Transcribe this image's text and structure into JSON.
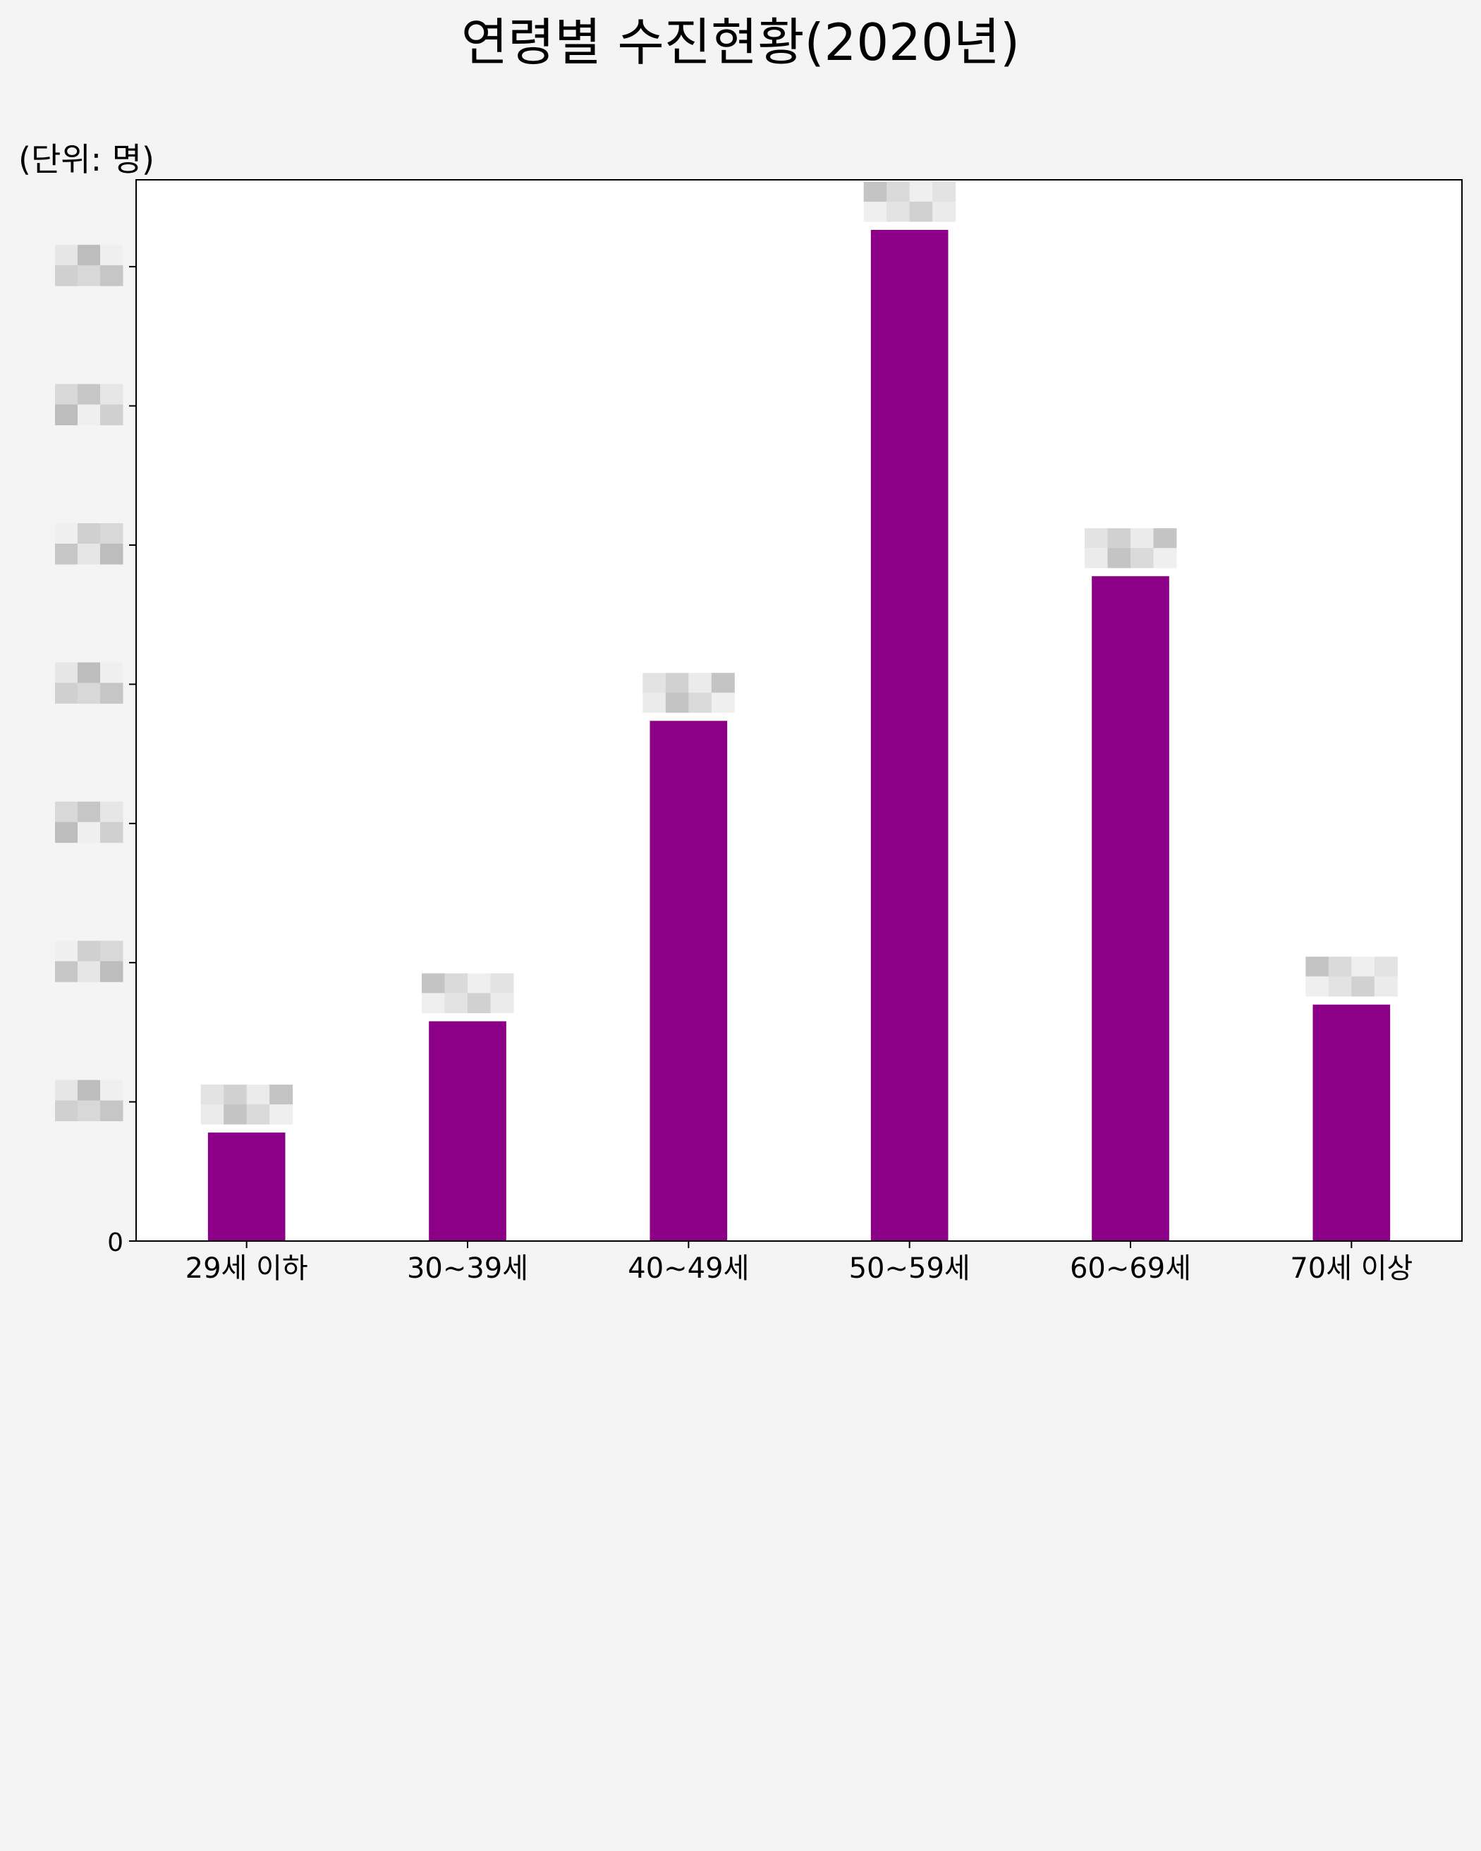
{
  "chart_data": {
    "type": "bar",
    "title": "연령별 수진현황(2020년)",
    "unit_label": "(단위: 명)",
    "categories": [
      "29세 이하",
      "30~39세",
      "40~49세",
      "50~59세",
      "60~69세",
      "70세 이상"
    ],
    "values": [
      78,
      158,
      374,
      727,
      478,
      170
    ],
    "y_ticks": [
      "0",
      "0",
      "0",
      "0",
      "0",
      "0",
      "0",
      "0"
    ],
    "ylim": [
      0,
      763
    ],
    "grid": false,
    "legend": "none",
    "bar_color": "#8b0087",
    "data_labels_obscured": true,
    "y_tick_labels_obscured": true
  }
}
